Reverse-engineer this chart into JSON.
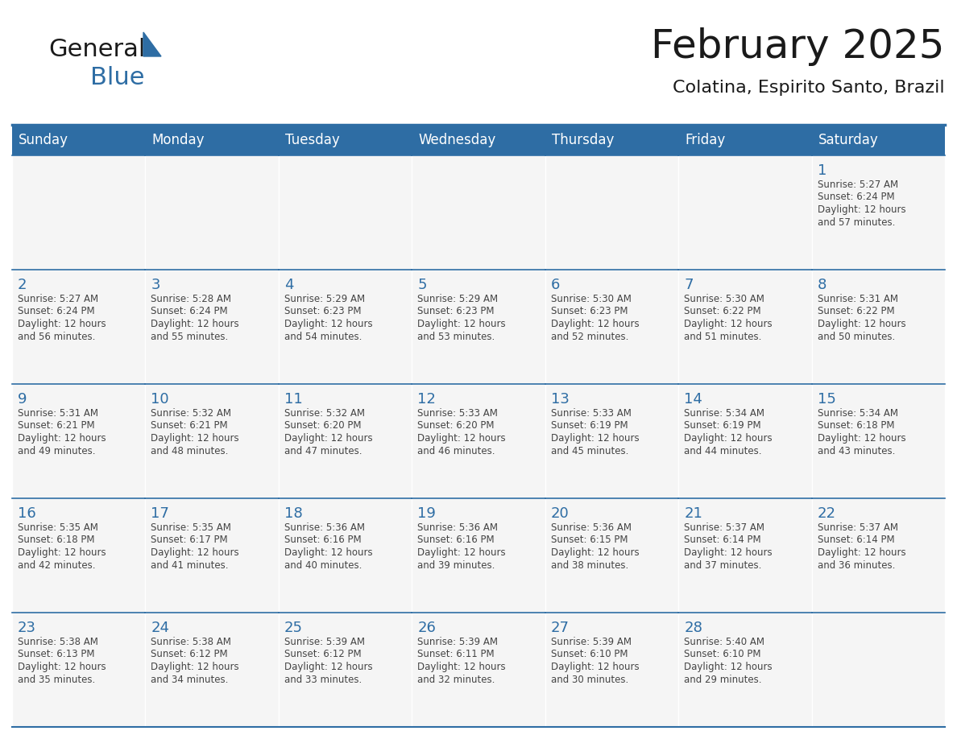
{
  "title": "February 2025",
  "subtitle": "Colatina, Espirito Santo, Brazil",
  "header_bg": "#2E6DA4",
  "header_text_color": "#FFFFFF",
  "cell_bg": "#F5F5F5",
  "day_number_color": "#2E6DA4",
  "info_text_color": "#444444",
  "days_of_week": [
    "Sunday",
    "Monday",
    "Tuesday",
    "Wednesday",
    "Thursday",
    "Friday",
    "Saturday"
  ],
  "weeks": [
    [
      null,
      null,
      null,
      null,
      null,
      null,
      1
    ],
    [
      2,
      3,
      4,
      5,
      6,
      7,
      8
    ],
    [
      9,
      10,
      11,
      12,
      13,
      14,
      15
    ],
    [
      16,
      17,
      18,
      19,
      20,
      21,
      22
    ],
    [
      23,
      24,
      25,
      26,
      27,
      28,
      null
    ]
  ],
  "cell_data": {
    "1": {
      "sunrise": "5:27 AM",
      "sunset": "6:24 PM",
      "daylight_hours": 12,
      "daylight_minutes": 57
    },
    "2": {
      "sunrise": "5:27 AM",
      "sunset": "6:24 PM",
      "daylight_hours": 12,
      "daylight_minutes": 56
    },
    "3": {
      "sunrise": "5:28 AM",
      "sunset": "6:24 PM",
      "daylight_hours": 12,
      "daylight_minutes": 55
    },
    "4": {
      "sunrise": "5:29 AM",
      "sunset": "6:23 PM",
      "daylight_hours": 12,
      "daylight_minutes": 54
    },
    "5": {
      "sunrise": "5:29 AM",
      "sunset": "6:23 PM",
      "daylight_hours": 12,
      "daylight_minutes": 53
    },
    "6": {
      "sunrise": "5:30 AM",
      "sunset": "6:23 PM",
      "daylight_hours": 12,
      "daylight_minutes": 52
    },
    "7": {
      "sunrise": "5:30 AM",
      "sunset": "6:22 PM",
      "daylight_hours": 12,
      "daylight_minutes": 51
    },
    "8": {
      "sunrise": "5:31 AM",
      "sunset": "6:22 PM",
      "daylight_hours": 12,
      "daylight_minutes": 50
    },
    "9": {
      "sunrise": "5:31 AM",
      "sunset": "6:21 PM",
      "daylight_hours": 12,
      "daylight_minutes": 49
    },
    "10": {
      "sunrise": "5:32 AM",
      "sunset": "6:21 PM",
      "daylight_hours": 12,
      "daylight_minutes": 48
    },
    "11": {
      "sunrise": "5:32 AM",
      "sunset": "6:20 PM",
      "daylight_hours": 12,
      "daylight_minutes": 47
    },
    "12": {
      "sunrise": "5:33 AM",
      "sunset": "6:20 PM",
      "daylight_hours": 12,
      "daylight_minutes": 46
    },
    "13": {
      "sunrise": "5:33 AM",
      "sunset": "6:19 PM",
      "daylight_hours": 12,
      "daylight_minutes": 45
    },
    "14": {
      "sunrise": "5:34 AM",
      "sunset": "6:19 PM",
      "daylight_hours": 12,
      "daylight_minutes": 44
    },
    "15": {
      "sunrise": "5:34 AM",
      "sunset": "6:18 PM",
      "daylight_hours": 12,
      "daylight_minutes": 43
    },
    "16": {
      "sunrise": "5:35 AM",
      "sunset": "6:18 PM",
      "daylight_hours": 12,
      "daylight_minutes": 42
    },
    "17": {
      "sunrise": "5:35 AM",
      "sunset": "6:17 PM",
      "daylight_hours": 12,
      "daylight_minutes": 41
    },
    "18": {
      "sunrise": "5:36 AM",
      "sunset": "6:16 PM",
      "daylight_hours": 12,
      "daylight_minutes": 40
    },
    "19": {
      "sunrise": "5:36 AM",
      "sunset": "6:16 PM",
      "daylight_hours": 12,
      "daylight_minutes": 39
    },
    "20": {
      "sunrise": "5:36 AM",
      "sunset": "6:15 PM",
      "daylight_hours": 12,
      "daylight_minutes": 38
    },
    "21": {
      "sunrise": "5:37 AM",
      "sunset": "6:14 PM",
      "daylight_hours": 12,
      "daylight_minutes": 37
    },
    "22": {
      "sunrise": "5:37 AM",
      "sunset": "6:14 PM",
      "daylight_hours": 12,
      "daylight_minutes": 36
    },
    "23": {
      "sunrise": "5:38 AM",
      "sunset": "6:13 PM",
      "daylight_hours": 12,
      "daylight_minutes": 35
    },
    "24": {
      "sunrise": "5:38 AM",
      "sunset": "6:12 PM",
      "daylight_hours": 12,
      "daylight_minutes": 34
    },
    "25": {
      "sunrise": "5:39 AM",
      "sunset": "6:12 PM",
      "daylight_hours": 12,
      "daylight_minutes": 33
    },
    "26": {
      "sunrise": "5:39 AM",
      "sunset": "6:11 PM",
      "daylight_hours": 12,
      "daylight_minutes": 32
    },
    "27": {
      "sunrise": "5:39 AM",
      "sunset": "6:10 PM",
      "daylight_hours": 12,
      "daylight_minutes": 30
    },
    "28": {
      "sunrise": "5:40 AM",
      "sunset": "6:10 PM",
      "daylight_hours": 12,
      "daylight_minutes": 29
    }
  },
  "logo_text1": "General",
  "logo_text2": "Blue",
  "logo_color1": "#1A1A1A",
  "logo_color2": "#2E6DA4",
  "logo_triangle_color": "#2E6DA4",
  "title_fontsize": 36,
  "subtitle_fontsize": 16,
  "header_fontsize": 12,
  "day_num_fontsize": 13,
  "cell_text_fontsize": 8.5
}
